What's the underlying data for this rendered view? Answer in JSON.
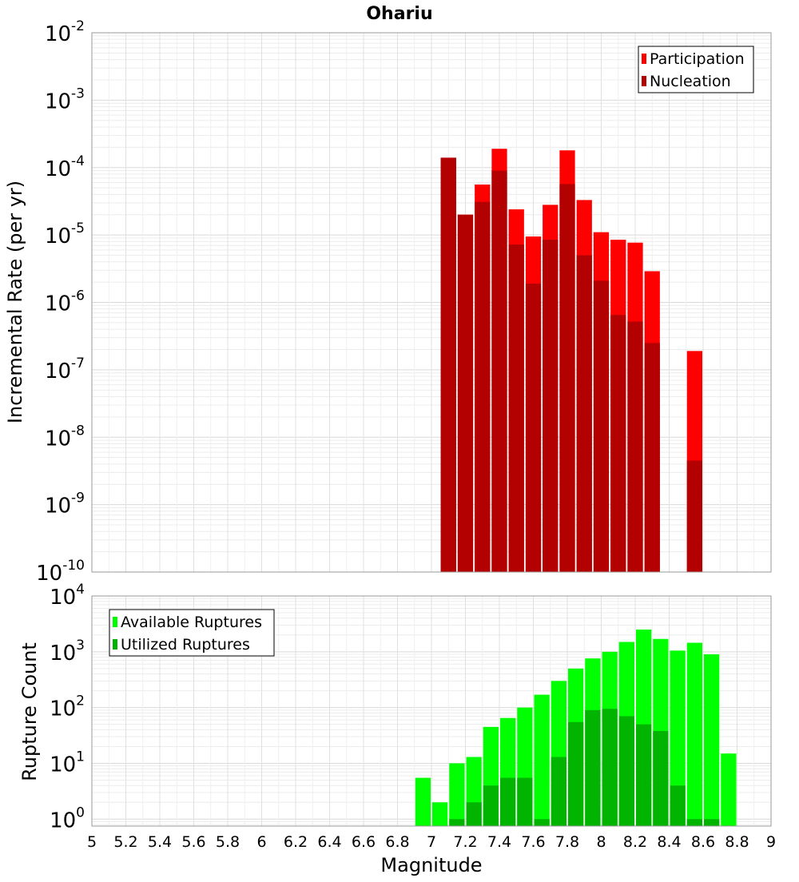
{
  "chart_data": [
    {
      "type": "bar",
      "title": "Ohariu",
      "ylabel": "Incremental Rate (per yr)",
      "xlabel": "",
      "yscale": "log",
      "ylim": [
        1e-10,
        0.01
      ],
      "xlim": [
        5,
        9
      ],
      "y_ticks": [
        {
          "mant": "10",
          "exp": "-10"
        },
        {
          "mant": "10",
          "exp": "-9"
        },
        {
          "mant": "10",
          "exp": "-8"
        },
        {
          "mant": "10",
          "exp": "-7"
        },
        {
          "mant": "10",
          "exp": "-6"
        },
        {
          "mant": "10",
          "exp": "-5"
        },
        {
          "mant": "10",
          "exp": "-4"
        },
        {
          "mant": "10",
          "exp": "-3"
        },
        {
          "mant": "10",
          "exp": "-2"
        }
      ],
      "legend": {
        "position": "top-right",
        "entries": [
          "Participation",
          "Nucleation"
        ]
      },
      "grid": true,
      "series": [
        {
          "name": "Participation",
          "color": "#ff0000",
          "x": [
            7.1,
            7.2,
            7.3,
            7.4,
            7.5,
            7.6,
            7.7,
            7.8,
            7.9,
            8.0,
            8.1,
            8.2,
            8.3,
            8.55
          ],
          "values": [
            0.00014,
            2e-05,
            5.6e-05,
            0.00019,
            2.4e-05,
            9.5e-06,
            2.8e-05,
            0.00018,
            3.3e-05,
            1.1e-05,
            8.5e-06,
            7.7e-06,
            2.9e-06,
            1.9e-07
          ]
        },
        {
          "name": "Nucleation",
          "color": "#b30000",
          "x": [
            7.1,
            7.2,
            7.3,
            7.4,
            7.5,
            7.6,
            7.7,
            7.8,
            7.9,
            8.0,
            8.1,
            8.2,
            8.3,
            8.55
          ],
          "values": [
            0.00014,
            2e-05,
            3.1e-05,
            9e-05,
            7.2e-06,
            1.9e-06,
            8.5e-06,
            5.7e-05,
            5e-06,
            2.1e-06,
            6.5e-07,
            5.2e-07,
            2.5e-07,
            4.5e-09
          ]
        }
      ]
    },
    {
      "type": "bar",
      "title": "",
      "ylabel": "Rupture Count",
      "xlabel": "Magnitude",
      "yscale": "log",
      "ylim": [
        0.75,
        10000
      ],
      "xlim": [
        5,
        9
      ],
      "x_ticks": [
        "5",
        "5.2",
        "5.4",
        "5.6",
        "5.8",
        "6",
        "6.2",
        "6.4",
        "6.6",
        "6.8",
        "7",
        "7.2",
        "7.4",
        "7.6",
        "7.8",
        "8",
        "8.2",
        "8.4",
        "8.6",
        "8.8",
        "9"
      ],
      "y_ticks": [
        {
          "mant": "10",
          "exp": "0"
        },
        {
          "mant": "10",
          "exp": "1"
        },
        {
          "mant": "10",
          "exp": "2"
        },
        {
          "mant": "10",
          "exp": "3"
        },
        {
          "mant": "10",
          "exp": "4"
        }
      ],
      "legend": {
        "position": "top-left",
        "entries": [
          "Available Ruptures",
          "Utilized Ruptures"
        ]
      },
      "grid": true,
      "series": [
        {
          "name": "Available Ruptures",
          "color": "#00ff00",
          "x": [
            6.95,
            7.05,
            7.15,
            7.25,
            7.35,
            7.45,
            7.55,
            7.65,
            7.75,
            7.85,
            7.95,
            8.05,
            8.15,
            8.25,
            8.35,
            8.45,
            8.55,
            8.65,
            8.75
          ],
          "values": [
            5.5,
            2,
            10,
            13,
            45,
            65,
            100,
            170,
            300,
            500,
            760,
            1000,
            1500,
            2500,
            1700,
            1050,
            1450,
            900,
            15
          ]
        },
        {
          "name": "Utilized Ruptures",
          "color": "#00b400",
          "x": [
            7.15,
            7.25,
            7.35,
            7.45,
            7.55,
            7.65,
            7.75,
            7.85,
            7.95,
            8.05,
            8.15,
            8.25,
            8.35,
            8.45,
            8.55,
            8.65
          ],
          "values": [
            1,
            2,
            4,
            5.5,
            5.5,
            1,
            13,
            55,
            90,
            95,
            70,
            50,
            38,
            4,
            1,
            1
          ]
        }
      ]
    }
  ]
}
